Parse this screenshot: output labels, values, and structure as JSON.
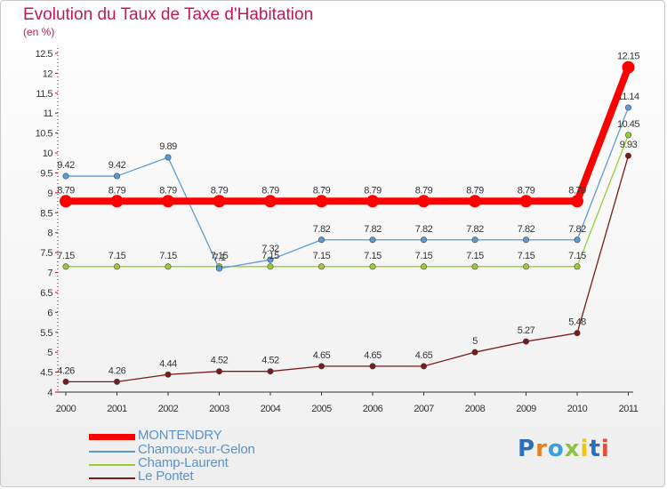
{
  "header": {
    "title": "Evolution du Taux de Taxe d'Habitation",
    "subtitle": "(en %)"
  },
  "logo": {
    "text": "Proxiti"
  },
  "chart_data": {
    "type": "line",
    "title": "Evolution du Taux de Taxe d'Habitation",
    "ylabel": "(en %)",
    "xlabel": "",
    "x": [
      "2000",
      "2001",
      "2002",
      "2003",
      "2004",
      "2005",
      "2006",
      "2007",
      "2008",
      "2009",
      "2010",
      "2011"
    ],
    "ylim": [
      4,
      12.5
    ],
    "yticks": [
      "4",
      "4.5",
      "5",
      "5.5",
      "6",
      "6.5",
      "7",
      "7.5",
      "8",
      "8.5",
      "9",
      "9.5",
      "10",
      "10.5",
      "11",
      "11.5",
      "12",
      "12.5"
    ],
    "grid": false,
    "legend_position": "bottom-left",
    "series": [
      {
        "name": "MONTENDRY",
        "color": "#ff0000",
        "values": [
          8.79,
          8.79,
          8.79,
          8.79,
          8.79,
          8.79,
          8.79,
          8.79,
          8.79,
          8.79,
          8.79,
          12.15
        ],
        "labels": [
          "8.79",
          "8.79",
          "8.79",
          "8.79",
          "8.79",
          "8.79",
          "8.79",
          "8.79",
          "8.79",
          "8.79",
          "8.79",
          "12.15"
        ]
      },
      {
        "name": "Chamoux-sur-Gelon",
        "color": "#5b9bd5",
        "values": [
          9.42,
          9.42,
          9.89,
          7.1,
          7.32,
          7.82,
          7.82,
          7.82,
          7.82,
          7.82,
          7.82,
          11.14
        ],
        "labels": [
          "9.42",
          "9.42",
          "9.89",
          "7.1",
          "7.32",
          "7.82",
          "7.82",
          "7.82",
          "7.82",
          "7.82",
          "7.82",
          "11.14"
        ]
      },
      {
        "name": "Champ-Laurent",
        "color": "#9acd32",
        "values": [
          7.15,
          7.15,
          7.15,
          7.15,
          7.15,
          7.15,
          7.15,
          7.15,
          7.15,
          7.15,
          7.15,
          10.45
        ],
        "labels": [
          "7.15",
          "7.15",
          "7.15",
          "7.15",
          "7.15",
          "7.15",
          "7.15",
          "7.15",
          "7.15",
          "7.15",
          "7.15",
          "10.45"
        ]
      },
      {
        "name": "Le Pontet",
        "color": "#7b1a1a",
        "values": [
          4.26,
          4.26,
          4.44,
          4.52,
          4.52,
          4.65,
          4.65,
          4.65,
          5,
          5.27,
          5.48,
          9.93
        ],
        "labels": [
          "4.26",
          "4.26",
          "4.44",
          "4.52",
          "4.52",
          "4.65",
          "4.65",
          "4.65",
          "5",
          "5.27",
          "5.48",
          "9.93"
        ]
      }
    ]
  }
}
